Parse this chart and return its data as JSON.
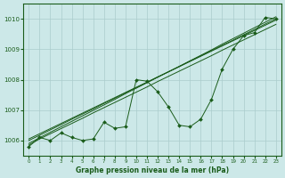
{
  "xlabel": "Graphe pression niveau de la mer (hPa)",
  "xlim": [
    -0.5,
    23.5
  ],
  "ylim": [
    1005.5,
    1010.5
  ],
  "yticks": [
    1006,
    1007,
    1008,
    1009,
    1010
  ],
  "xticks": [
    0,
    1,
    2,
    3,
    4,
    5,
    6,
    7,
    8,
    9,
    10,
    11,
    12,
    13,
    14,
    15,
    16,
    17,
    18,
    19,
    20,
    21,
    22,
    23
  ],
  "background_color": "#cce8e8",
  "grid_color": "#aacccc",
  "line_color": "#1a5c1a",
  "zigzag_y": [
    1005.8,
    1006.1,
    1006.0,
    1006.25,
    1006.1,
    1006.0,
    1006.05,
    1006.6,
    1006.4,
    1006.45,
    1008.0,
    1007.95,
    1007.6,
    1007.1,
    1006.5,
    1006.45,
    1006.7,
    1007.35,
    1008.35,
    1009.0,
    1009.45,
    1009.55,
    1010.05,
    1010.0
  ],
  "smooth_lines": [
    [
      1005.85,
      1006.05,
      1006.22,
      1006.39,
      1006.56,
      1006.73,
      1006.91,
      1007.08,
      1007.25,
      1007.42,
      1007.59,
      1007.76,
      1007.94,
      1008.11,
      1008.28,
      1008.45,
      1008.62,
      1008.79,
      1008.97,
      1009.14,
      1009.31,
      1009.48,
      1009.65,
      1009.82
    ],
    [
      1005.9,
      1006.09,
      1006.27,
      1006.45,
      1006.63,
      1006.81,
      1006.99,
      1007.17,
      1007.35,
      1007.54,
      1007.72,
      1007.9,
      1008.08,
      1008.26,
      1008.44,
      1008.62,
      1008.8,
      1008.98,
      1009.17,
      1009.35,
      1009.53,
      1009.71,
      1009.89,
      1010.07
    ],
    [
      1006.0,
      1006.17,
      1006.35,
      1006.52,
      1006.7,
      1006.87,
      1007.04,
      1007.22,
      1007.39,
      1007.57,
      1007.74,
      1007.91,
      1008.09,
      1008.26,
      1008.43,
      1008.61,
      1008.78,
      1008.96,
      1009.13,
      1009.3,
      1009.48,
      1009.65,
      1009.83,
      1010.0
    ],
    [
      1006.05,
      1006.22,
      1006.39,
      1006.56,
      1006.73,
      1006.9,
      1007.07,
      1007.24,
      1007.41,
      1007.58,
      1007.75,
      1007.92,
      1008.09,
      1008.26,
      1008.43,
      1008.6,
      1008.77,
      1008.94,
      1009.11,
      1009.28,
      1009.45,
      1009.62,
      1009.79,
      1009.96
    ]
  ]
}
